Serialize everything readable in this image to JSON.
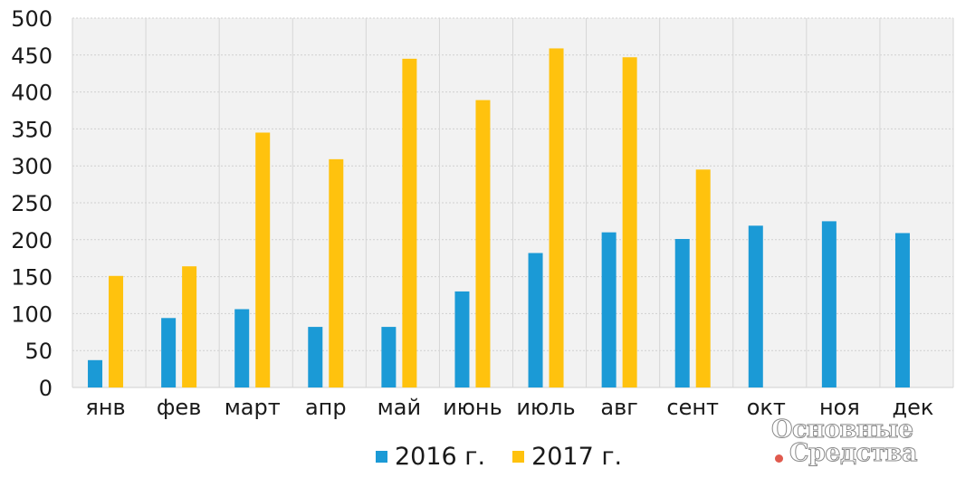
{
  "chart_data": {
    "type": "bar",
    "categories": [
      "янв",
      "фев",
      "март",
      "апр",
      "май",
      "июнь",
      "июль",
      "авг",
      "сент",
      "окт",
      "ноя",
      "дек"
    ],
    "series": [
      {
        "name": "2016 г.",
        "color": "#1b9ad6",
        "values": [
          37,
          94,
          106,
          82,
          82,
          130,
          182,
          210,
          201,
          219,
          225,
          209
        ]
      },
      {
        "name": "2017 г.",
        "color": "#ffc20e",
        "values": [
          151,
          164,
          345,
          309,
          445,
          389,
          459,
          447,
          295,
          null,
          null,
          null
        ]
      }
    ],
    "ylim": [
      0,
      500
    ],
    "yticks": [
      0,
      50,
      100,
      150,
      200,
      250,
      300,
      350,
      400,
      450,
      500
    ],
    "grid": true,
    "legend_position": "bottom"
  },
  "logo": {
    "line1": "Основные",
    "line2": "Средства"
  }
}
